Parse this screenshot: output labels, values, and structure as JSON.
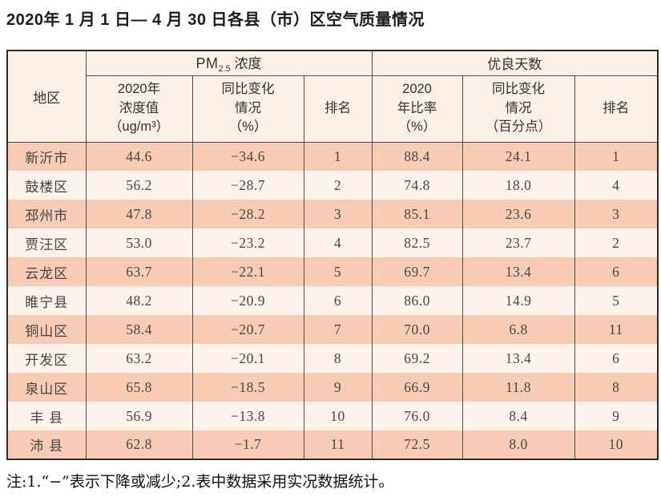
{
  "title": "2020年 1 月 1 日— 4 月 30 日各县（市）区空气质量情况",
  "table": {
    "corner_header": "地区",
    "pm_group": {
      "prefix": "PM",
      "sub": "2.5",
      "suffix": " 浓度"
    },
    "good_group": "优良天数",
    "sub_headers": {
      "pm_value": "2020年\n浓度值\n（ug/m³）",
      "pm_change": "同比变化\n情况\n（%）",
      "pm_rank": "排名",
      "good_ratio": "2020\n年比率\n（%）",
      "good_change": "同比变化\n情况\n（百分点）",
      "good_rank": "排名"
    },
    "rows": [
      {
        "region": "新沂市",
        "pm_value": "44.6",
        "pm_change": "−34.6",
        "pm_rank": "1",
        "good_ratio": "88.4",
        "good_change": "24.1",
        "good_rank": "1"
      },
      {
        "region": "鼓楼区",
        "pm_value": "56.2",
        "pm_change": "−28.7",
        "pm_rank": "2",
        "good_ratio": "74.8",
        "good_change": "18.0",
        "good_rank": "4"
      },
      {
        "region": "邳州市",
        "pm_value": "47.8",
        "pm_change": "−28.2",
        "pm_rank": "3",
        "good_ratio": "85.1",
        "good_change": "23.6",
        "good_rank": "3"
      },
      {
        "region": "贾汪区",
        "pm_value": "53.0",
        "pm_change": "−23.2",
        "pm_rank": "4",
        "good_ratio": "82.5",
        "good_change": "23.7",
        "good_rank": "2"
      },
      {
        "region": "云龙区",
        "pm_value": "63.7",
        "pm_change": "−22.1",
        "pm_rank": "5",
        "good_ratio": "69.7",
        "good_change": "13.4",
        "good_rank": "6"
      },
      {
        "region": "睢宁县",
        "pm_value": "48.2",
        "pm_change": "−20.9",
        "pm_rank": "6",
        "good_ratio": "86.0",
        "good_change": "14.9",
        "good_rank": "5"
      },
      {
        "region": "铜山区",
        "pm_value": "58.4",
        "pm_change": "−20.7",
        "pm_rank": "7",
        "good_ratio": "70.0",
        "good_change": "6.8",
        "good_rank": "11"
      },
      {
        "region": "开发区",
        "pm_value": "63.2",
        "pm_change": "−20.1",
        "pm_rank": "8",
        "good_ratio": "69.2",
        "good_change": "13.4",
        "good_rank": "6"
      },
      {
        "region": "泉山区",
        "pm_value": "65.8",
        "pm_change": "−18.5",
        "pm_rank": "9",
        "good_ratio": "66.9",
        "good_change": "11.8",
        "good_rank": "8"
      },
      {
        "region": "丰 县",
        "pm_value": "56.9",
        "pm_change": "−13.8",
        "pm_rank": "10",
        "good_ratio": "76.0",
        "good_change": "8.4",
        "good_rank": "9"
      },
      {
        "region": "沛 县",
        "pm_value": "62.8",
        "pm_change": "−1.7",
        "pm_rank": "11",
        "good_ratio": "72.5",
        "good_change": "8.0",
        "good_rank": "10"
      }
    ]
  },
  "footnote": "注:1.“−”表示下降或减少;2.表中数据采用实况数据统计。"
}
